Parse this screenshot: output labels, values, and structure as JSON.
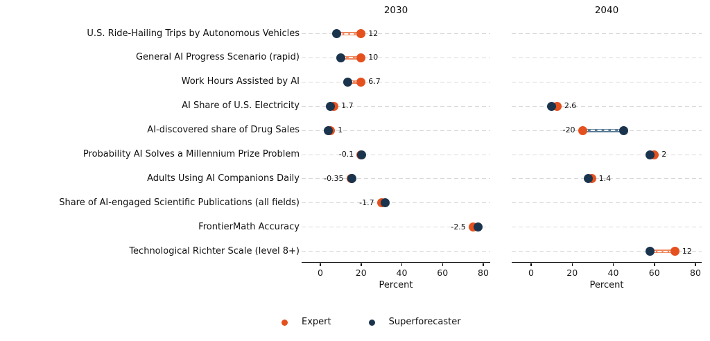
{
  "chart_data": {
    "type": "dumbbell",
    "description": "Two-panel horizontal dumbbell chart comparing Expert and Superforecaster percent forecasts for 2030 and 2040; numeric label shows expert minus superforecaster gap",
    "xlabel": "Percent",
    "xlim": [
      0,
      80
    ],
    "x_ticks": [
      0,
      20,
      40,
      60,
      80
    ],
    "grid": "horizontal-dashed",
    "legend_position": "bottom-center",
    "colors": {
      "expert": "#E4511E",
      "superforecaster": "#1B344D",
      "connector_expert_higher": "#F0875F",
      "connector_superforecaster_higher": "#5B7D97",
      "gridline": "#D8D8D8",
      "axis": "#000000"
    },
    "legend": [
      {
        "label": "Expert",
        "color": "#E4511E"
      },
      {
        "label": "Superforecaster",
        "color": "#1B344D"
      }
    ],
    "categories": [
      "U.S. Ride-Hailing Trips by Autonomous Vehicles",
      "General AI Progress Scenario (rapid)",
      "Work Hours Assisted by AI",
      "AI Share of U.S. Electricity",
      "AI-discovered share of Drug Sales",
      "Probability AI Solves a Millennium Prize Problem",
      "Adults Using AI Companions Daily",
      "Share of AI-engaged Scientific Publications (all fields)",
      "FrontierMath Accuracy",
      "Technological Richter Scale (level 8+)"
    ],
    "panels": [
      {
        "title": "2030",
        "xlabel": "Percent",
        "ticks": [
          0,
          20,
          40,
          60,
          80
        ],
        "rows": [
          {
            "category_index": 0,
            "expert": 20,
            "superforecaster": 8,
            "gap_label": "12"
          },
          {
            "category_index": 1,
            "expert": 20,
            "superforecaster": 10,
            "gap_label": "10"
          },
          {
            "category_index": 2,
            "expert": 20,
            "superforecaster": 13.3,
            "gap_label": "6.7"
          },
          {
            "category_index": 3,
            "expert": 6.7,
            "superforecaster": 5,
            "gap_label": "1.7"
          },
          {
            "category_index": 4,
            "expert": 5,
            "superforecaster": 4,
            "gap_label": "1"
          },
          {
            "category_index": 5,
            "expert": 20,
            "superforecaster": 20.1,
            "gap_label": "-0.1"
          },
          {
            "category_index": 6,
            "expert": 15,
            "superforecaster": 15.35,
            "gap_label": "-0.35"
          },
          {
            "category_index": 7,
            "expert": 30,
            "superforecaster": 31.7,
            "gap_label": "-1.7"
          },
          {
            "category_index": 8,
            "expert": 75,
            "superforecaster": 77.5,
            "gap_label": "-2.5"
          }
        ]
      },
      {
        "title": "2040",
        "xlabel": "Percent",
        "ticks": [
          0,
          20,
          40,
          60,
          80
        ],
        "rows": [
          {
            "category_index": 3,
            "expert": 12.6,
            "superforecaster": 10,
            "gap_label": "2.6"
          },
          {
            "category_index": 4,
            "expert": 25,
            "superforecaster": 45,
            "gap_label": "-20"
          },
          {
            "category_index": 5,
            "expert": 60,
            "superforecaster": 58,
            "gap_label": "2"
          },
          {
            "category_index": 6,
            "expert": 29.4,
            "superforecaster": 28,
            "gap_label": "1.4"
          },
          {
            "category_index": 9,
            "expert": 70,
            "superforecaster": 58,
            "gap_label": "12"
          }
        ]
      }
    ]
  }
}
